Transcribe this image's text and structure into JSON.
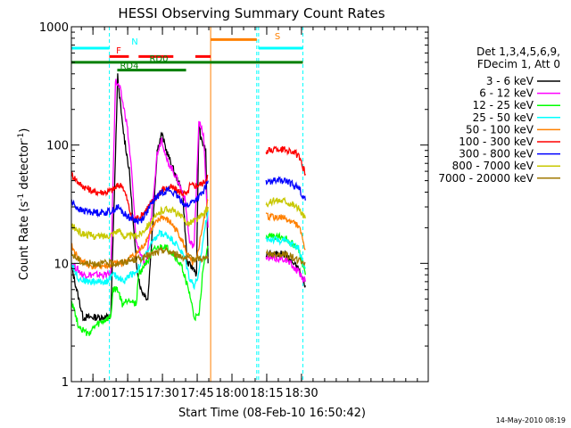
{
  "chart_data": {
    "type": "line",
    "title": "HESSI Observing Summary Count Rates",
    "xlabel": "Start Time (08-Feb-10 16:50:42)",
    "ylabel_prefix": "Count Rate (s",
    "ylabel_sup1": "-1",
    "ylabel_mid": " detector",
    "ylabel_sup2": "-1",
    "ylabel_suffix": ")",
    "yscale": "log",
    "ylim": [
      1,
      1000
    ],
    "xlim_min": [
      0,
      154
    ],
    "x_unit": "minutes since 16:50:42",
    "yticks": [
      {
        "label": "1",
        "value": 1
      },
      {
        "label": "10",
        "value": 10
      },
      {
        "label": "100",
        "value": 100
      },
      {
        "label": "1000",
        "value": 1000
      }
    ],
    "xticks": [
      {
        "label": "17:00",
        "value": 9.3
      },
      {
        "label": "17:15",
        "value": 24.3
      },
      {
        "label": "17:30",
        "value": 39.3
      },
      {
        "label": "17:45",
        "value": 54.3
      },
      {
        "label": "18:00",
        "value": 69.3
      },
      {
        "label": "18:15",
        "value": 84.3
      },
      {
        "label": "18:30",
        "value": 99.3
      }
    ],
    "legend_header": [
      "Det 1,3,4,5,6,9,",
      "FDecim 1, Att 0"
    ],
    "series": [
      {
        "name": "3 - 6 keV",
        "color": "#000000",
        "points": [
          [
            0,
            9.5
          ],
          [
            5,
            3.5
          ],
          [
            17,
            3.5
          ],
          [
            20,
            380
          ],
          [
            22,
            150
          ],
          [
            25,
            60
          ],
          [
            28,
            10
          ],
          [
            30,
            6
          ],
          [
            33,
            5
          ],
          [
            35,
            20
          ],
          [
            37,
            90
          ],
          [
            39,
            125
          ],
          [
            41,
            90
          ],
          [
            43,
            70
          ],
          [
            45,
            55
          ],
          [
            48,
            40
          ],
          [
            50,
            10
          ],
          [
            53,
            9
          ],
          [
            54,
            8
          ],
          [
            55,
            150
          ],
          [
            56,
            110
          ],
          [
            58,
            90
          ],
          [
            59,
            10
          ]
        ],
        "segments_after_gap": [
          [
            [
              84,
              12
            ],
            [
              92,
              12
            ],
            [
              98,
              9
            ],
            [
              101,
              6.5
            ]
          ]
        ]
      },
      {
        "name": "6 - 12 keV",
        "color": "#ff00ff",
        "points": [
          [
            0,
            10
          ],
          [
            5,
            8
          ],
          [
            17,
            8
          ],
          [
            19,
            350
          ],
          [
            21,
            300
          ],
          [
            24,
            150
          ],
          [
            26,
            60
          ],
          [
            28,
            15
          ],
          [
            30,
            12
          ],
          [
            32,
            9
          ],
          [
            34,
            20
          ],
          [
            37,
            85
          ],
          [
            39,
            115
          ],
          [
            41,
            75
          ],
          [
            43,
            65
          ],
          [
            46,
            50
          ],
          [
            49,
            35
          ],
          [
            51,
            15
          ],
          [
            53,
            14
          ],
          [
            55,
            160
          ],
          [
            57,
            120
          ],
          [
            59,
            20
          ]
        ],
        "segments_after_gap": [
          [
            [
              84,
              11
            ],
            [
              92,
              11
            ],
            [
              98,
              8.5
            ],
            [
              101,
              7
            ]
          ]
        ]
      },
      {
        "name": "12 - 25 keV",
        "color": "#00ff00",
        "points": [
          [
            0,
            5
          ],
          [
            3,
            3
          ],
          [
            7,
            2.5
          ],
          [
            11,
            3
          ],
          [
            17,
            3.5
          ],
          [
            18,
            6
          ],
          [
            20,
            6
          ],
          [
            22,
            4.5
          ],
          [
            25,
            5
          ],
          [
            28,
            4.5
          ],
          [
            29,
            8
          ],
          [
            32,
            10
          ],
          [
            36,
            13
          ],
          [
            40,
            14
          ],
          [
            44,
            12
          ],
          [
            48,
            9
          ],
          [
            51,
            5.5
          ],
          [
            53,
            3.5
          ],
          [
            55,
            3.5
          ],
          [
            57,
            10
          ],
          [
            59,
            14
          ]
        ],
        "segments_after_gap": [
          [
            [
              84,
              17
            ],
            [
              92,
              16.5
            ],
            [
              98,
              13.5
            ],
            [
              101,
              8
            ]
          ]
        ]
      },
      {
        "name": "25 - 50 keV",
        "color": "#00ffff",
        "points": [
          [
            0,
            10
          ],
          [
            3,
            7.5
          ],
          [
            7,
            7
          ],
          [
            12,
            7
          ],
          [
            15,
            7
          ],
          [
            18,
            8
          ],
          [
            21,
            7.5
          ],
          [
            23,
            7
          ],
          [
            25,
            8
          ],
          [
            28,
            8.5
          ],
          [
            30,
            10
          ],
          [
            34,
            14
          ],
          [
            38,
            18
          ],
          [
            42,
            17
          ],
          [
            46,
            14
          ],
          [
            49,
            11
          ],
          [
            51,
            7.5
          ],
          [
            53,
            6.5
          ],
          [
            55,
            8
          ],
          [
            57,
            17
          ],
          [
            59,
            28
          ]
        ],
        "segments_after_gap": [
          [
            [
              84,
              16
            ],
            [
              92,
              15.5
            ],
            [
              98,
              13.5
            ],
            [
              101,
              9
            ]
          ]
        ]
      },
      {
        "name": "50 - 100 keV",
        "color": "#ff8000",
        "points": [
          [
            0,
            14
          ],
          [
            3,
            11
          ],
          [
            8,
            9.5
          ],
          [
            12,
            9.5
          ],
          [
            16,
            9.5
          ],
          [
            19,
            10
          ],
          [
            22,
            10
          ],
          [
            25,
            11
          ],
          [
            28,
            12
          ],
          [
            31,
            14
          ],
          [
            35,
            20
          ],
          [
            39,
            25
          ],
          [
            43,
            22
          ],
          [
            47,
            17
          ],
          [
            50,
            12
          ],
          [
            52,
            10
          ],
          [
            54,
            10.5
          ],
          [
            56,
            18
          ],
          [
            59,
            34
          ]
        ],
        "segments_after_gap": [
          [
            [
              84,
              25
            ],
            [
              92,
              24
            ],
            [
              98,
              21
            ],
            [
              101,
              13
            ]
          ]
        ]
      },
      {
        "name": "100 - 300 keV",
        "color": "#ff0000",
        "points": [
          [
            0,
            57
          ],
          [
            4,
            46
          ],
          [
            10,
            40
          ],
          [
            15,
            40
          ],
          [
            18,
            42
          ],
          [
            20,
            45
          ],
          [
            22,
            46
          ],
          [
            24,
            35
          ],
          [
            26,
            24
          ],
          [
            28,
            24
          ],
          [
            30,
            25
          ],
          [
            33,
            30
          ],
          [
            36,
            35
          ],
          [
            39,
            42
          ],
          [
            43,
            44
          ],
          [
            47,
            40
          ],
          [
            50,
            38
          ],
          [
            51,
            45
          ],
          [
            55,
            46
          ],
          [
            57,
            48
          ],
          [
            59,
            55
          ]
        ],
        "segments_after_gap": [
          [
            [
              84,
              88
            ],
            [
              88,
              93
            ],
            [
              92,
              92
            ],
            [
              96,
              88
            ],
            [
              98,
              80
            ],
            [
              101,
              57
            ]
          ]
        ]
      },
      {
        "name": "300 - 800 keV",
        "color": "#0000ff",
        "points": [
          [
            0,
            33
          ],
          [
            4,
            28
          ],
          [
            10,
            27
          ],
          [
            15,
            27
          ],
          [
            18,
            28
          ],
          [
            20,
            30
          ],
          [
            23,
            26
          ],
          [
            26,
            24
          ],
          [
            28,
            23
          ],
          [
            30,
            23
          ],
          [
            33,
            28
          ],
          [
            36,
            35
          ],
          [
            39,
            40
          ],
          [
            42,
            42
          ],
          [
            45,
            38
          ],
          [
            48,
            33
          ],
          [
            50,
            30
          ],
          [
            51,
            32
          ],
          [
            55,
            36
          ],
          [
            57,
            40
          ],
          [
            59,
            50
          ]
        ],
        "segments_after_gap": [
          [
            [
              84,
              48
            ],
            [
              88,
              50
            ],
            [
              92,
              50
            ],
            [
              96,
              46
            ],
            [
              98,
              44
            ],
            [
              101,
              34
            ]
          ]
        ]
      },
      {
        "name": "800 - 7000 keV",
        "color": "#c8c800",
        "points": [
          [
            0,
            21
          ],
          [
            4,
            18
          ],
          [
            10,
            17
          ],
          [
            15,
            17
          ],
          [
            18,
            18
          ],
          [
            20,
            19
          ],
          [
            23,
            17
          ],
          [
            26,
            17
          ],
          [
            28,
            17
          ],
          [
            30,
            18
          ],
          [
            33,
            21
          ],
          [
            36,
            24
          ],
          [
            39,
            28
          ],
          [
            42,
            29
          ],
          [
            45,
            27
          ],
          [
            48,
            24
          ],
          [
            50,
            22
          ],
          [
            51,
            22
          ],
          [
            55,
            24
          ],
          [
            57,
            26
          ],
          [
            59,
            30
          ]
        ],
        "segments_after_gap": [
          [
            [
              84,
              32
            ],
            [
              88,
              34
            ],
            [
              92,
              34
            ],
            [
              96,
              31
            ],
            [
              98,
              29
            ],
            [
              101,
              24
            ]
          ]
        ]
      },
      {
        "name": "7000 - 20000 keV",
        "color": "#a07800",
        "points": [
          [
            0,
            12
          ],
          [
            5,
            10
          ],
          [
            15,
            10
          ],
          [
            20,
            10
          ],
          [
            30,
            11
          ],
          [
            40,
            13
          ],
          [
            50,
            11
          ],
          [
            59,
            11
          ]
        ],
        "segments_after_gap": [
          [
            [
              84,
              12
            ],
            [
              92,
              12
            ],
            [
              101,
              10
            ]
          ]
        ]
      }
    ],
    "vertical_markers": [
      {
        "x": 16.4,
        "color": "#00ffff",
        "style": "dashed"
      },
      {
        "x": 0.0,
        "color": "#00ffff",
        "style": "solid"
      },
      {
        "x": 60.1,
        "color": "#ff8000",
        "style": "solid"
      },
      {
        "x": 80.0,
        "color": "#00ffff",
        "style": "dashed"
      },
      {
        "x": 80.8,
        "color": "#00ffff",
        "style": "dashed"
      },
      {
        "x": 99.9,
        "color": "#00ffff",
        "style": "dashed"
      }
    ],
    "flag_bars": [
      {
        "label": "N",
        "color": "#00ffff",
        "segments": [
          [
            0,
            16.4
          ],
          [
            80.8,
            99.9
          ]
        ],
        "level": 660
      },
      {
        "label": "S",
        "color": "#ff8000",
        "segments": [
          [
            60.1,
            80.0
          ]
        ],
        "level": 780
      },
      {
        "label": "F",
        "color": "#ff0000",
        "segments": [
          [
            16.4,
            24.8
          ],
          [
            29.0,
            44.0
          ],
          [
            53.5,
            60.1
          ]
        ],
        "level": 560
      },
      {
        "label": "RD0",
        "color": "#008000",
        "segments": [
          [
            0,
            99.9
          ]
        ],
        "level": 500
      },
      {
        "label": "RD4",
        "color": "#008000",
        "segments": [
          [
            19.8,
            49.5
          ]
        ],
        "level": 430
      }
    ],
    "flag_labels": [
      {
        "text": "N",
        "color": "#00ffff"
      },
      {
        "text": "S",
        "color": "#ff8000"
      },
      {
        "text": "F",
        "color": "#ff0000"
      },
      {
        "text": "RD0",
        "color": "#008000"
      },
      {
        "text": "RD4",
        "color": "#008000"
      }
    ]
  },
  "footer": {
    "timestamp": "14-May-2010 08:19"
  }
}
